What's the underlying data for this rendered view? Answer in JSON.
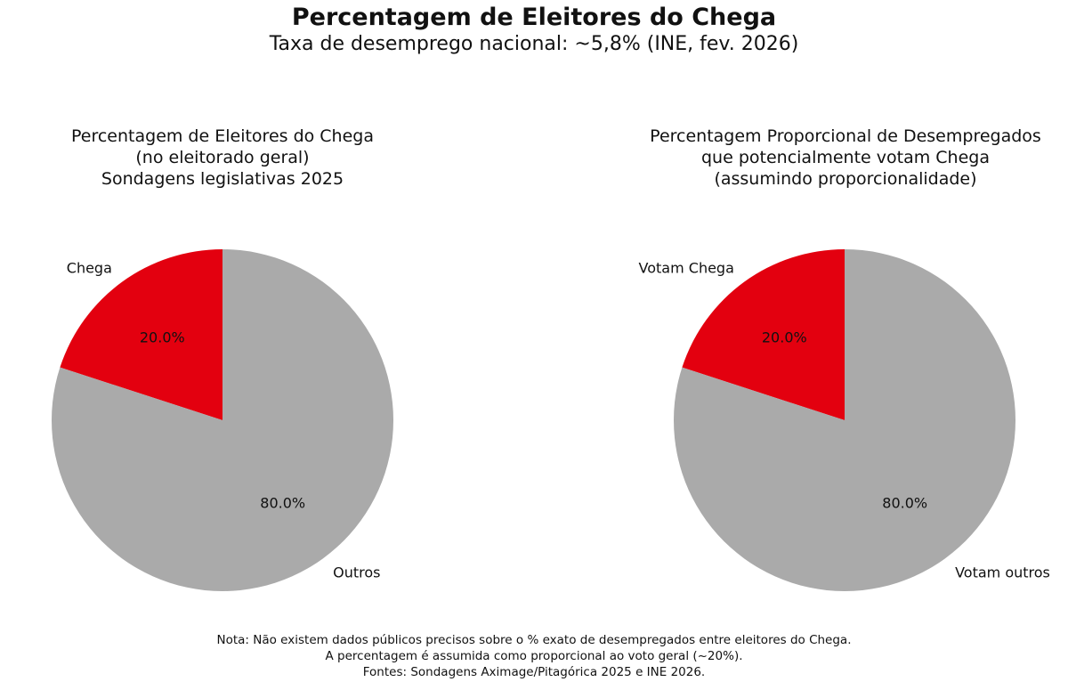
{
  "title": "Percentagem de Eleitores do Chega",
  "subtitle": "Taxa de desemprego nacional: ~5,8% (INE, fev. 2026)",
  "colors": {
    "highlight": "#e3000f",
    "others": "#aaaaaa"
  },
  "chart_data": [
    {
      "type": "pie",
      "title_lines": [
        "Percentagem de Eleitores do Chega",
        "(no eleitorado geral)",
        "Sondagens legislativas 2025"
      ],
      "slices": [
        {
          "label": "Chega",
          "value": 20.0,
          "pct_label": "20.0%",
          "color": "#e3000f"
        },
        {
          "label": "Outros",
          "value": 80.0,
          "pct_label": "80.0%",
          "color": "#aaaaaa"
        }
      ]
    },
    {
      "type": "pie",
      "title_lines": [
        "Percentagem Proporcional de Desempregados",
        "que potencialmente votam Chega",
        "(assumindo proporcionalidade)"
      ],
      "slices": [
        {
          "label": "Votam Chega",
          "value": 20.0,
          "pct_label": "20.0%",
          "color": "#e3000f"
        },
        {
          "label": "Votam outros",
          "value": 80.0,
          "pct_label": "80.0%",
          "color": "#aaaaaa"
        }
      ]
    }
  ],
  "note_lines": [
    "Nota: Não existem dados públicos precisos sobre o % exato de desempregados entre eleitores do Chega.",
    "A percentagem é assumida como proporcional ao voto geral (~20%).",
    "Fontes: Sondagens Aximage/Pitagórica 2025 e INE 2026."
  ]
}
